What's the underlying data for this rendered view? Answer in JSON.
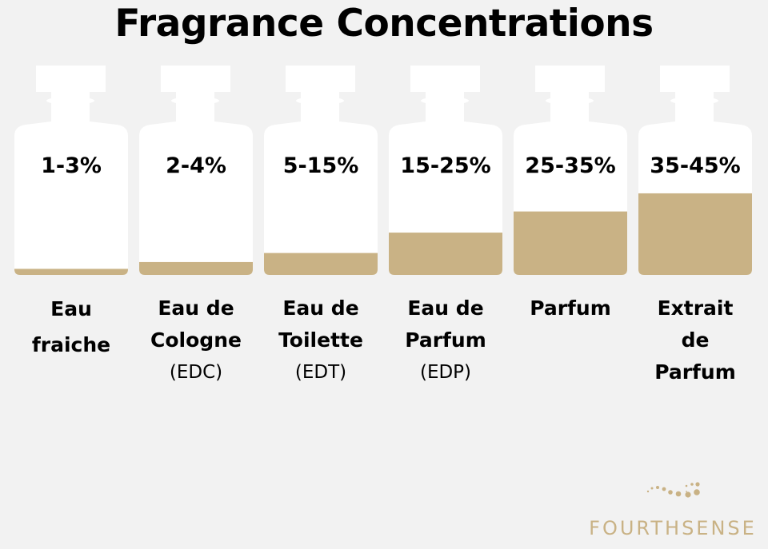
{
  "title": "Fragrance Concentrations",
  "colors": {
    "fill": "#c9b285",
    "bottle": "#ffffff",
    "background": "#f2f2f2"
  },
  "bottles": [
    {
      "percent": "1-3%",
      "name": "Eau fraiche",
      "abbr": "",
      "fill_fraction": 0.04
    },
    {
      "percent": "2-4%",
      "name": "Eau de Cologne",
      "abbr": "(EDC)",
      "fill_fraction": 0.085
    },
    {
      "percent": "5-15%",
      "name": "Eau de Toilette",
      "abbr": "(EDT)",
      "fill_fraction": 0.145
    },
    {
      "percent": "15-25%",
      "name": "Eau de Parfum",
      "abbr": "(EDP)",
      "fill_fraction": 0.28
    },
    {
      "percent": "25-35%",
      "name": "Parfum",
      "abbr": "",
      "fill_fraction": 0.42
    },
    {
      "percent": "35-45%",
      "name": "Extrait de Parfum",
      "abbr": "",
      "fill_fraction": 0.54
    }
  ],
  "logo": {
    "text": "FOURTHSENSE"
  }
}
